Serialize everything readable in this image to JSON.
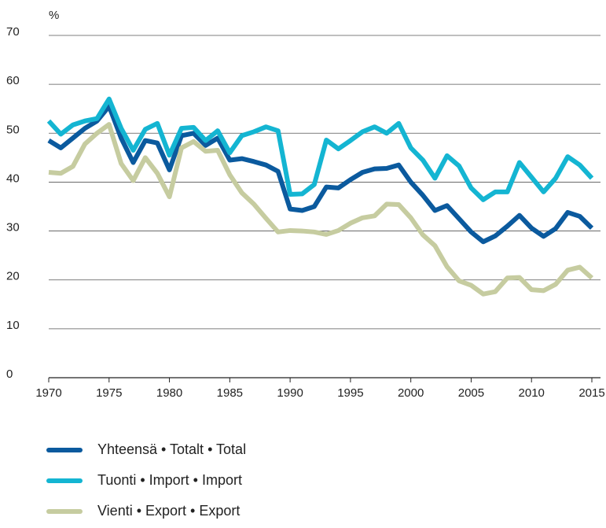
{
  "chart_data": {
    "type": "line",
    "y_label": "%",
    "x": [
      1970,
      1971,
      1972,
      1973,
      1974,
      1975,
      1976,
      1977,
      1978,
      1979,
      1980,
      1981,
      1982,
      1983,
      1984,
      1985,
      1986,
      1987,
      1988,
      1989,
      1990,
      1991,
      1992,
      1993,
      1994,
      1995,
      1996,
      1997,
      1998,
      1999,
      2000,
      2001,
      2002,
      2003,
      2004,
      2005,
      2006,
      2007,
      2008,
      2009,
      2010,
      2011,
      2012,
      2013,
      2014,
      2015
    ],
    "series": [
      {
        "name": "Yhteensä • Totalt • Total",
        "color": "#0b5a9e",
        "values": [
          48.5,
          47,
          49,
          51,
          52.5,
          55.5,
          49,
          44,
          48.5,
          48,
          42.5,
          49.5,
          50,
          47.5,
          49,
          44.5,
          44.8,
          44.2,
          43.5,
          42.2,
          34.5,
          34.2,
          35,
          39,
          38.8,
          40.5,
          42,
          42.7,
          42.8,
          43.5,
          40,
          37.3,
          34.2,
          35.2,
          32.5,
          29.8,
          27.8,
          29,
          31,
          33.2,
          30.6,
          28.9,
          30.5,
          33.8,
          33,
          30.6
        ]
      },
      {
        "name": "Tuonti • Import • Import",
        "color": "#14b5d2",
        "values": [
          52.5,
          49.8,
          51.7,
          52.5,
          53,
          57,
          51,
          46.5,
          50.8,
          52,
          45.5,
          51,
          51.2,
          48.5,
          50.5,
          46,
          49.5,
          50.3,
          51.3,
          50.5,
          37.5,
          37.6,
          39.5,
          48.6,
          46.8,
          48.5,
          50.3,
          51.3,
          50,
          52,
          47,
          44.5,
          40.8,
          45.4,
          43.3,
          38.8,
          36.4,
          38,
          38,
          44,
          41,
          38,
          40.8,
          45.2,
          43.5,
          40.8
        ]
      },
      {
        "name": "Vienti • Export • Export",
        "color": "#c6cca0",
        "values": [
          42,
          41.8,
          43.2,
          47.8,
          50,
          51.8,
          43.8,
          40.3,
          45,
          41.8,
          37,
          47,
          48.3,
          46.3,
          46.5,
          41.5,
          37.8,
          35.5,
          32.6,
          29.8,
          30.1,
          30,
          29.8,
          29.3,
          30.1,
          31.6,
          32.7,
          33.1,
          35.5,
          35.4,
          32.7,
          29.2,
          27,
          22.7,
          19.8,
          18.9,
          17.1,
          17.6,
          20.4,
          20.5,
          18,
          17.8,
          19.1,
          22,
          22.6,
          20.4
        ]
      }
    ],
    "xlim": [
      1970,
      2015
    ],
    "xticks": [
      1970,
      1975,
      1980,
      1985,
      1990,
      1995,
      2000,
      2005,
      2010,
      2015
    ],
    "ylim": [
      0,
      70
    ],
    "yticks": [
      0,
      10,
      20,
      30,
      40,
      50,
      60,
      70
    ],
    "grid": true
  }
}
